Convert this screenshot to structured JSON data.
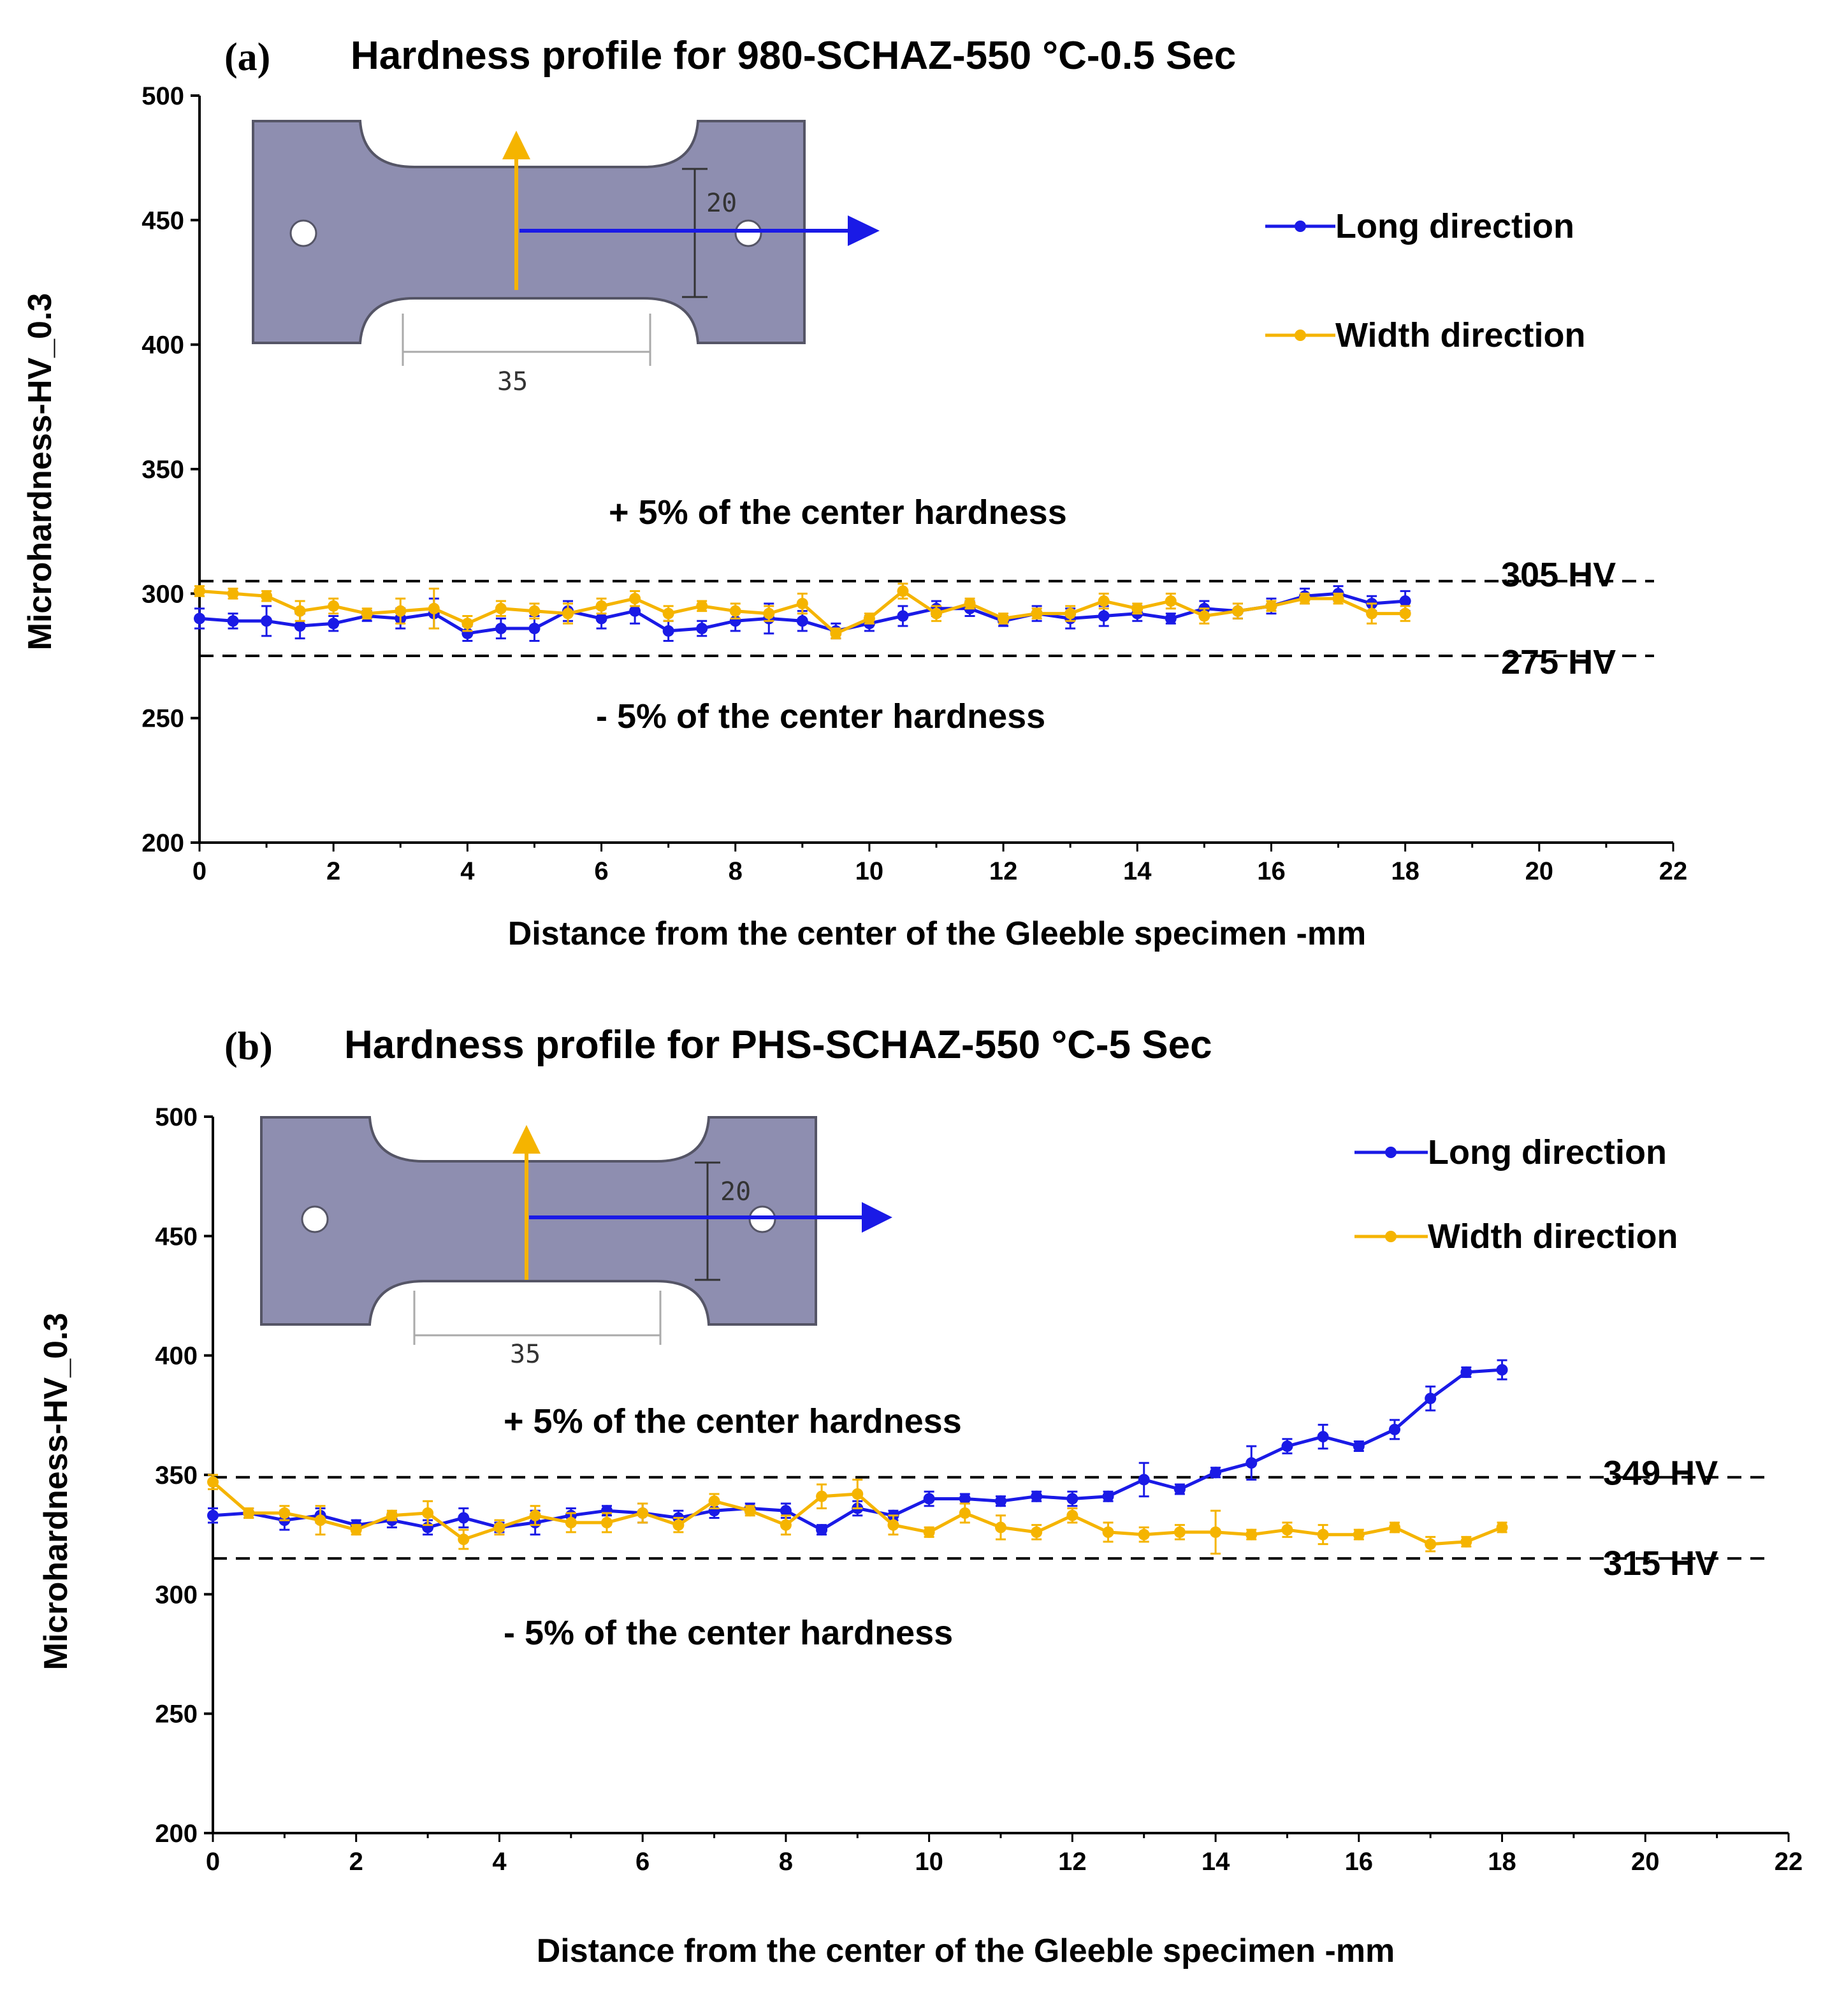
{
  "colors": {
    "long": "#1a1ae6",
    "width": "#f5b400",
    "specimen_fill": "#8e8eb0",
    "specimen_stroke": "#555566",
    "dashed": "#000000"
  },
  "chart_data": [
    {
      "type": "line",
      "panel_label": "(a)",
      "title": "Hardness profile for 980-SCHAZ-550 °C-0.5 Sec",
      "xlabel": "Distance from the center of the Gleeble specimen -mm",
      "ylabel": "Microhardness-HV_0.3",
      "xlim": [
        0,
        22
      ],
      "ylim": [
        200,
        500
      ],
      "xticks": [
        0,
        2,
        4,
        6,
        8,
        10,
        12,
        14,
        16,
        18,
        20,
        22
      ],
      "yticks": [
        200,
        250,
        300,
        350,
        400,
        450,
        500
      ],
      "legend_position": "top-right",
      "grid": false,
      "x": [
        0,
        0.5,
        1,
        1.5,
        2,
        2.5,
        3,
        3.5,
        4,
        4.5,
        5,
        5.5,
        6,
        6.5,
        7,
        7.5,
        8,
        8.5,
        9,
        9.5,
        10,
        10.5,
        11,
        11.5,
        12,
        12.5,
        13,
        13.5,
        14,
        14.5,
        15,
        15.5,
        16,
        16.5,
        17,
        17.5,
        18
      ],
      "series": [
        {
          "name": "Long direction",
          "color": "#1a1ae6",
          "values": [
            290,
            289,
            289,
            287,
            288,
            291,
            290,
            292,
            284,
            286,
            286,
            293,
            290,
            293,
            285,
            286,
            289,
            290,
            289,
            285,
            288,
            291,
            294,
            294,
            289,
            292,
            290,
            291,
            292,
            290,
            294,
            293,
            295,
            299,
            300,
            296,
            297
          ],
          "errors": [
            4,
            3,
            6,
            5,
            3,
            2,
            4,
            6,
            3,
            4,
            5,
            4,
            4,
            5,
            4,
            3,
            4,
            6,
            4,
            3,
            3,
            4,
            3,
            3,
            2,
            3,
            4,
            4,
            3,
            2,
            3,
            3,
            3,
            3,
            3,
            3,
            4
          ]
        },
        {
          "name": "Width direction",
          "color": "#f5b400",
          "values": [
            301,
            300,
            299,
            293,
            295,
            292,
            293,
            294,
            288,
            294,
            293,
            292,
            295,
            298,
            292,
            295,
            293,
            292,
            296,
            284,
            290,
            301,
            292,
            296,
            290,
            292,
            292,
            297,
            294,
            297,
            291,
            293,
            295,
            298,
            298,
            292,
            292
          ],
          "errors": [
            2,
            2,
            2,
            4,
            3,
            2,
            5,
            8,
            3,
            3,
            3,
            4,
            3,
            3,
            3,
            2,
            3,
            3,
            4,
            2,
            2,
            3,
            3,
            2,
            2,
            2,
            3,
            3,
            2,
            3,
            3,
            3,
            2,
            2,
            2,
            4,
            3
          ]
        }
      ],
      "reference_lines": [
        {
          "value": 305,
          "label": "305 HV"
        },
        {
          "value": 275,
          "label": "275 HV"
        }
      ],
      "annotations": [
        "+ 5% of the center hardness",
        "- 5% of the center hardness"
      ],
      "specimen_dims": [
        "20",
        "35"
      ]
    },
    {
      "type": "line",
      "panel_label": "(b)",
      "title": "Hardness profile for PHS-SCHAZ-550 °C-5 Sec",
      "xlabel": "Distance from the center of the Gleeble specimen -mm",
      "ylabel": "Microhardness-HV_0.3",
      "xlim": [
        0,
        22
      ],
      "ylim": [
        200,
        500
      ],
      "xticks": [
        0,
        2,
        4,
        6,
        8,
        10,
        12,
        14,
        16,
        18,
        20,
        22
      ],
      "yticks": [
        200,
        250,
        300,
        350,
        400,
        450,
        500
      ],
      "legend_position": "top-right",
      "grid": false,
      "x": [
        0,
        0.5,
        1,
        1.5,
        2,
        2.5,
        3,
        3.5,
        4,
        4.5,
        5,
        5.5,
        6,
        6.5,
        7,
        7.5,
        8,
        8.5,
        9,
        9.5,
        10,
        10.5,
        11,
        11.5,
        12,
        12.5,
        13,
        13.5,
        14,
        14.5,
        15,
        15.5,
        16,
        16.5,
        17,
        17.5,
        18
      ],
      "series": [
        {
          "name": "Long direction",
          "color": "#1a1ae6",
          "values": [
            333,
            334,
            331,
            333,
            329,
            331,
            328,
            332,
            328,
            330,
            333,
            335,
            334,
            332,
            335,
            336,
            335,
            327,
            336,
            333,
            340,
            340,
            339,
            341,
            340,
            341,
            348,
            344,
            351,
            355,
            362,
            366,
            362,
            369,
            382,
            393,
            394
          ],
          "errors": [
            3,
            2,
            4,
            3,
            2,
            3,
            3,
            4,
            2,
            5,
            3,
            2,
            4,
            3,
            3,
            2,
            3,
            2,
            3,
            2,
            3,
            2,
            2,
            2,
            3,
            2,
            7,
            2,
            2,
            7,
            3,
            5,
            2,
            4,
            5,
            2,
            4
          ]
        },
        {
          "name": "Width direction",
          "color": "#f5b400",
          "values": [
            347,
            334,
            334,
            331,
            327,
            333,
            334,
            323,
            328,
            333,
            330,
            330,
            334,
            329,
            339,
            335,
            329,
            341,
            342,
            329,
            326,
            334,
            328,
            326,
            333,
            326,
            325,
            326,
            326,
            325,
            327,
            325,
            325,
            328,
            321,
            322,
            328
          ],
          "errors": [
            3,
            2,
            3,
            6,
            2,
            2,
            5,
            4,
            3,
            4,
            4,
            4,
            4,
            3,
            3,
            2,
            4,
            5,
            6,
            4,
            2,
            4,
            5,
            3,
            3,
            4,
            3,
            3,
            9,
            2,
            3,
            4,
            2,
            2,
            3,
            2,
            2
          ]
        }
      ],
      "reference_lines": [
        {
          "value": 349,
          "label": "349 HV"
        },
        {
          "value": 315,
          "label": "315 HV"
        }
      ],
      "annotations": [
        "+ 5% of the center hardness",
        "- 5% of the center hardness"
      ],
      "specimen_dims": [
        "20",
        "35"
      ]
    }
  ]
}
